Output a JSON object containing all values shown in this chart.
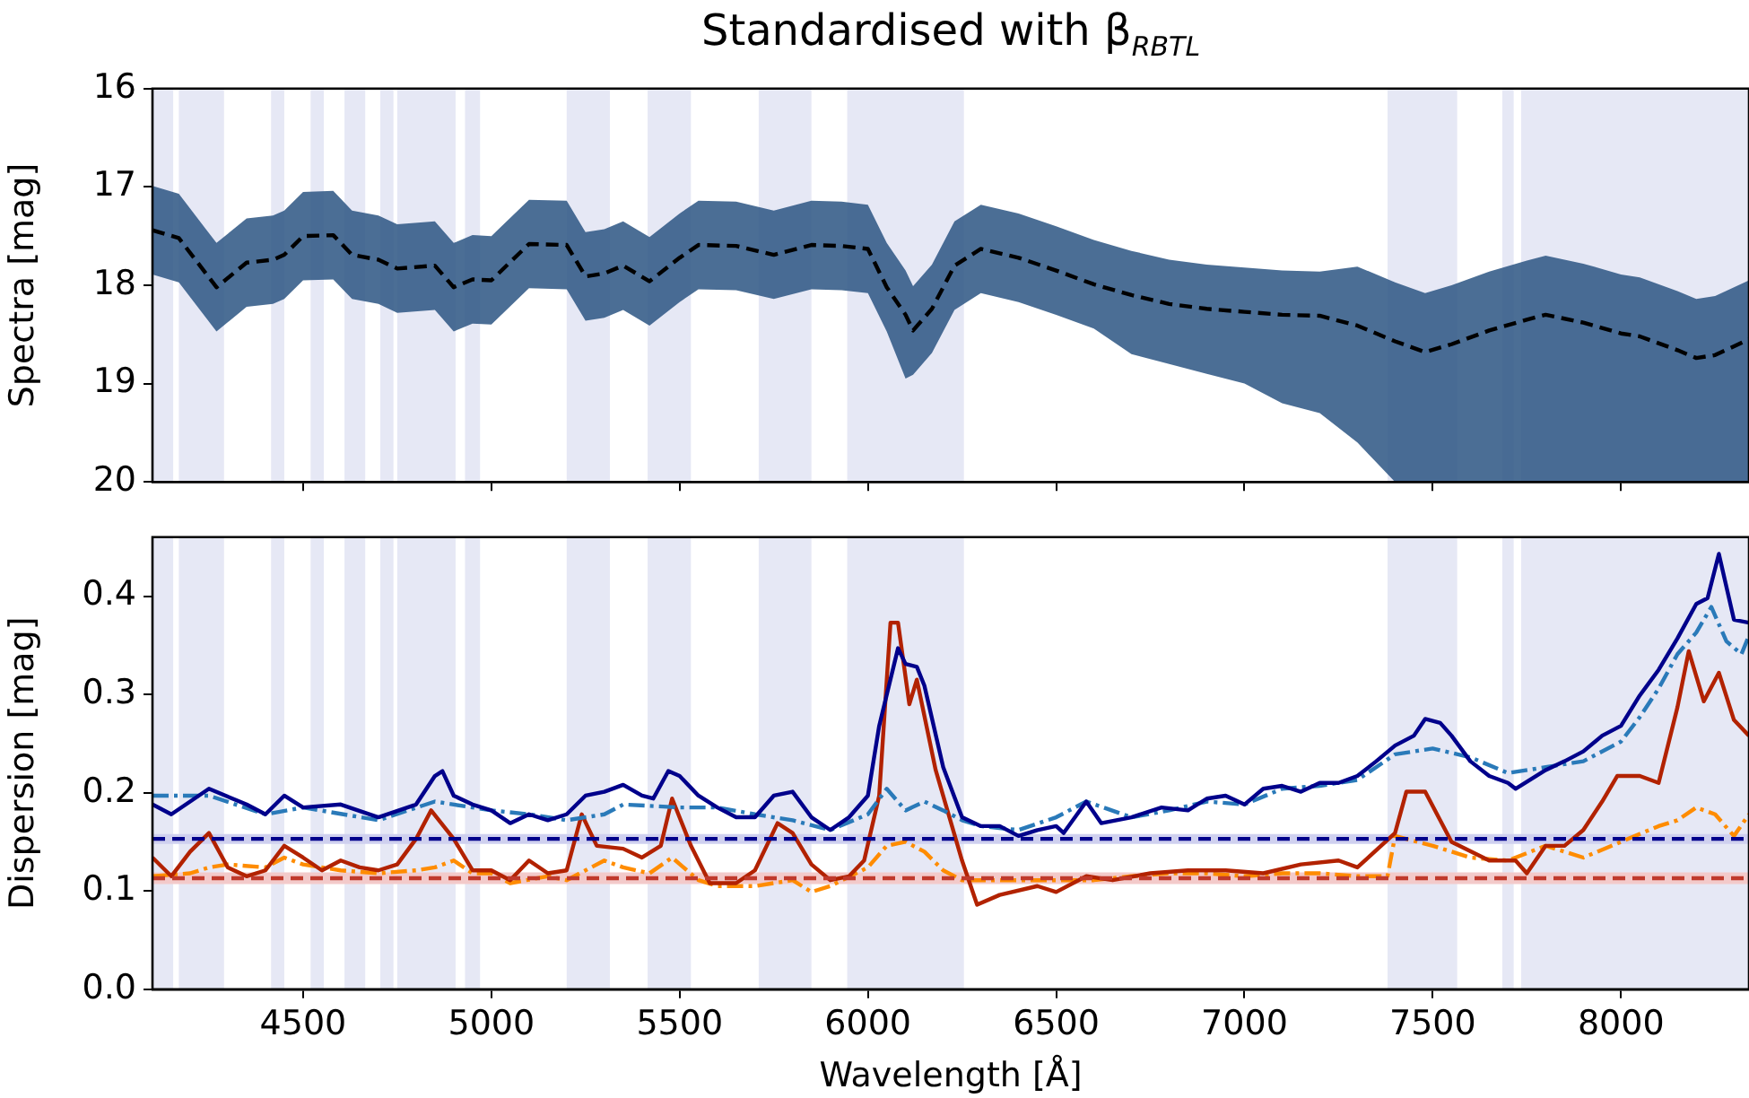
{
  "chart_data": [
    {
      "type": "line",
      "title": "Standardised with β$_{RBTL}$",
      "ylabel": "Spectra [mag]",
      "xlim": [
        4100,
        8340
      ],
      "ylim": [
        20,
        16
      ],
      "xticks": [
        4500,
        5000,
        5500,
        6000,
        6500,
        7000,
        7500,
        8000
      ],
      "yticks": [
        16,
        17,
        18,
        19,
        20
      ],
      "tick_labels": "y",
      "bands": [
        {
          "axis": "x",
          "from": 4100,
          "to": 4155,
          "color": "#e6e8f5"
        },
        {
          "axis": "x",
          "from": 4170,
          "to": 4290,
          "color": "#e6e8f5"
        },
        {
          "axis": "x",
          "from": 4415,
          "to": 4450,
          "color": "#e6e8f5"
        },
        {
          "axis": "x",
          "from": 4520,
          "to": 4555,
          "color": "#e6e8f5"
        },
        {
          "axis": "x",
          "from": 4610,
          "to": 4665,
          "color": "#e6e8f5"
        },
        {
          "axis": "x",
          "from": 4705,
          "to": 4740,
          "color": "#e6e8f5"
        },
        {
          "axis": "x",
          "from": 4750,
          "to": 4905,
          "color": "#e6e8f5"
        },
        {
          "axis": "x",
          "from": 4930,
          "to": 4970,
          "color": "#e6e8f5"
        },
        {
          "axis": "x",
          "from": 5200,
          "to": 5315,
          "color": "#e6e8f5"
        },
        {
          "axis": "x",
          "from": 5415,
          "to": 5530,
          "color": "#e6e8f5"
        },
        {
          "axis": "x",
          "from": 5710,
          "to": 5850,
          "color": "#e6e8f5"
        },
        {
          "axis": "x",
          "from": 5945,
          "to": 6255,
          "color": "#e6e8f5"
        },
        {
          "axis": "x",
          "from": 7380,
          "to": 7565,
          "color": "#e6e8f5"
        },
        {
          "axis": "x",
          "from": 7685,
          "to": 7715,
          "color": "#e6e8f5"
        },
        {
          "axis": "x",
          "from": 7735,
          "to": 8340,
          "color": "#e6e8f5"
        }
      ],
      "series": [
        {
          "color": "#000000",
          "line_style": "dashed",
          "x": [
            4100,
            4170,
            4270,
            4350,
            4420,
            4450,
            4500,
            4580,
            4630,
            4700,
            4750,
            4850,
            4900,
            4950,
            5000,
            5100,
            5200,
            5250,
            5300,
            5350,
            5420,
            5500,
            5550,
            5650,
            5750,
            5850,
            5930,
            6000,
            6050,
            6100,
            6120,
            6170,
            6230,
            6300,
            6400,
            6500,
            6600,
            6700,
            6800,
            6900,
            7000,
            7100,
            7200,
            7300,
            7400,
            7480,
            7550,
            7650,
            7750,
            7800,
            7900,
            8000,
            8050,
            8150,
            8200,
            8250,
            8340
          ],
          "values": [
            17.44,
            17.52,
            18.02,
            17.77,
            17.74,
            17.69,
            17.5,
            17.49,
            17.69,
            17.74,
            17.83,
            17.8,
            18.02,
            17.94,
            17.95,
            17.58,
            17.59,
            17.91,
            17.88,
            17.8,
            17.96,
            17.72,
            17.59,
            17.6,
            17.69,
            17.59,
            17.6,
            17.63,
            18.02,
            18.3,
            18.46,
            18.24,
            17.8,
            17.63,
            17.72,
            17.85,
            17.99,
            18.1,
            18.19,
            18.24,
            18.27,
            18.3,
            18.31,
            18.41,
            18.57,
            18.68,
            18.6,
            18.46,
            18.35,
            18.3,
            18.38,
            18.49,
            18.52,
            18.66,
            18.74,
            18.71,
            18.55
          ],
          "upper": [
            16.99,
            17.07,
            17.57,
            17.32,
            17.29,
            17.24,
            17.05,
            17.04,
            17.24,
            17.29,
            17.38,
            17.35,
            17.57,
            17.49,
            17.5,
            17.13,
            17.14,
            17.46,
            17.43,
            17.35,
            17.51,
            17.27,
            17.14,
            17.15,
            17.24,
            17.14,
            17.15,
            17.18,
            17.57,
            17.85,
            18.01,
            17.79,
            17.35,
            17.18,
            17.27,
            17.4,
            17.54,
            17.65,
            17.74,
            17.79,
            17.82,
            17.85,
            17.86,
            17.81,
            17.97,
            18.08,
            18.0,
            17.86,
            17.75,
            17.7,
            17.78,
            17.89,
            17.92,
            18.06,
            18.14,
            18.11,
            17.95
          ],
          "lower": [
            17.89,
            17.97,
            18.47,
            18.22,
            18.19,
            18.14,
            17.95,
            17.94,
            18.14,
            18.19,
            18.28,
            18.25,
            18.47,
            18.39,
            18.4,
            18.03,
            18.04,
            18.36,
            18.33,
            18.25,
            18.41,
            18.17,
            18.04,
            18.05,
            18.14,
            18.04,
            18.05,
            18.08,
            18.47,
            18.95,
            18.91,
            18.69,
            18.25,
            18.08,
            18.17,
            18.3,
            18.44,
            18.7,
            18.8,
            18.9,
            19.0,
            19.2,
            19.3,
            19.6,
            20,
            20,
            20,
            20,
            20,
            20,
            20,
            20,
            20,
            20,
            20,
            20,
            20
          ]
        }
      ]
    },
    {
      "type": "line",
      "xlabel": "Wavelength [Å]",
      "ylabel": "Dispersion [mag]",
      "xlim": [
        4100,
        8340
      ],
      "ylim": [
        0,
        0.46
      ],
      "xticks": [
        4500,
        5000,
        5500,
        6000,
        6500,
        7000,
        7500,
        8000
      ],
      "yticks": [
        {
          "value": 0,
          "label": "0.0"
        },
        {
          "value": 0.1,
          "label": "0.1"
        },
        {
          "value": 0.2,
          "label": "0.2"
        },
        {
          "value": 0.3,
          "label": "0.3"
        },
        {
          "value": 0.4,
          "label": "0.4"
        }
      ],
      "bands": [
        {
          "axis": "x",
          "from": 4100,
          "to": 4155,
          "color": "#e6e8f5"
        },
        {
          "axis": "x",
          "from": 4170,
          "to": 4290,
          "color": "#e6e8f5"
        },
        {
          "axis": "x",
          "from": 4415,
          "to": 4450,
          "color": "#e6e8f5"
        },
        {
          "axis": "x",
          "from": 4520,
          "to": 4555,
          "color": "#e6e8f5"
        },
        {
          "axis": "x",
          "from": 4610,
          "to": 4665,
          "color": "#e6e8f5"
        },
        {
          "axis": "x",
          "from": 4705,
          "to": 4740,
          "color": "#e6e8f5"
        },
        {
          "axis": "x",
          "from": 4750,
          "to": 4905,
          "color": "#e6e8f5"
        },
        {
          "axis": "x",
          "from": 4930,
          "to": 4970,
          "color": "#e6e8f5"
        },
        {
          "axis": "x",
          "from": 5200,
          "to": 5315,
          "color": "#e6e8f5"
        },
        {
          "axis": "x",
          "from": 5415,
          "to": 5530,
          "color": "#e6e8f5"
        },
        {
          "axis": "x",
          "from": 5710,
          "to": 5850,
          "color": "#e6e8f5"
        },
        {
          "axis": "x",
          "from": 5945,
          "to": 6255,
          "color": "#e6e8f5"
        },
        {
          "axis": "x",
          "from": 7380,
          "to": 7565,
          "color": "#e6e8f5"
        },
        {
          "axis": "x",
          "from": 7685,
          "to": 7715,
          "color": "#e6e8f5"
        },
        {
          "axis": "x",
          "from": 7735,
          "to": 8340,
          "color": "#e6e8f5"
        },
        {
          "axis": "y",
          "from": 0.148,
          "to": 0.158,
          "color": "#cfd0ef"
        },
        {
          "axis": "y",
          "from": 0.107,
          "to": 0.119,
          "color": "#f3caca"
        }
      ],
      "ref_lines": [
        {
          "axis": "y",
          "value": 0.153,
          "color": "#00008b",
          "line_style": "dashed"
        },
        {
          "axis": "y",
          "value": 0.113,
          "color": "#c0392b",
          "line_style": "dashed"
        }
      ],
      "series": [
        {
          "color": "#00008b",
          "line_style": "solid",
          "x": [
            4100,
            4150,
            4250,
            4350,
            4400,
            4450,
            4500,
            4600,
            4700,
            4800,
            4850,
            4870,
            4900,
            4950,
            5000,
            5050,
            5100,
            5150,
            5200,
            5250,
            5300,
            5350,
            5400,
            5430,
            5470,
            5500,
            5550,
            5600,
            5650,
            5700,
            5750,
            5800,
            5850,
            5900,
            5950,
            6000,
            6030,
            6080,
            6100,
            6130,
            6150,
            6200,
            6250,
            6300,
            6350,
            6400,
            6450,
            6500,
            6520,
            6580,
            6620,
            6700,
            6780,
            6850,
            6900,
            6950,
            7000,
            7050,
            7100,
            7150,
            7200,
            7250,
            7300,
            7350,
            7400,
            7450,
            7480,
            7520,
            7550,
            7600,
            7650,
            7700,
            7720,
            7800,
            7850,
            7900,
            7950,
            8000,
            8050,
            8100,
            8150,
            8200,
            8230,
            8260,
            8300,
            8340
          ],
          "values": [
            0.188,
            0.178,
            0.204,
            0.188,
            0.178,
            0.197,
            0.185,
            0.188,
            0.175,
            0.188,
            0.217,
            0.222,
            0.197,
            0.188,
            0.182,
            0.169,
            0.178,
            0.172,
            0.178,
            0.197,
            0.201,
            0.208,
            0.197,
            0.194,
            0.222,
            0.217,
            0.197,
            0.185,
            0.175,
            0.175,
            0.197,
            0.201,
            0.175,
            0.162,
            0.175,
            0.197,
            0.268,
            0.347,
            0.331,
            0.328,
            0.309,
            0.226,
            0.175,
            0.166,
            0.166,
            0.156,
            0.162,
            0.166,
            0.159,
            0.191,
            0.169,
            0.175,
            0.185,
            0.182,
            0.194,
            0.197,
            0.188,
            0.204,
            0.207,
            0.201,
            0.21,
            0.21,
            0.217,
            0.232,
            0.248,
            0.258,
            0.275,
            0.271,
            0.258,
            0.232,
            0.217,
            0.21,
            0.204,
            0.223,
            0.232,
            0.242,
            0.258,
            0.268,
            0.299,
            0.325,
            0.357,
            0.392,
            0.398,
            0.443,
            0.376,
            0.373
          ]
        },
        {
          "color": "#2a7ab9",
          "line_style": "dashdot",
          "x": [
            4100,
            4250,
            4400,
            4500,
            4700,
            4850,
            4950,
            5000,
            5100,
            5200,
            5300,
            5350,
            5500,
            5600,
            5700,
            5800,
            5900,
            6000,
            6050,
            6100,
            6150,
            6200,
            6250,
            6300,
            6400,
            6500,
            6580,
            6700,
            6800,
            6900,
            7000,
            7100,
            7200,
            7300,
            7400,
            7450,
            7500,
            7600,
            7700,
            7800,
            7900,
            8000,
            8050,
            8100,
            8150,
            8200,
            8240,
            8280,
            8320,
            8340
          ],
          "values": [
            0.197,
            0.197,
            0.178,
            0.185,
            0.172,
            0.191,
            0.185,
            0.182,
            0.178,
            0.172,
            0.178,
            0.188,
            0.185,
            0.185,
            0.178,
            0.172,
            0.162,
            0.178,
            0.204,
            0.182,
            0.191,
            0.182,
            0.172,
            0.166,
            0.162,
            0.175,
            0.191,
            0.175,
            0.182,
            0.191,
            0.188,
            0.204,
            0.207,
            0.213,
            0.239,
            0.242,
            0.245,
            0.236,
            0.22,
            0.226,
            0.232,
            0.252,
            0.277,
            0.306,
            0.341,
            0.363,
            0.389,
            0.354,
            0.341,
            0.36
          ]
        },
        {
          "color": "#b22200",
          "line_style": "solid",
          "x": [
            4100,
            4150,
            4200,
            4250,
            4300,
            4350,
            4400,
            4450,
            4500,
            4550,
            4600,
            4650,
            4700,
            4750,
            4800,
            4840,
            4900,
            4950,
            5000,
            5050,
            5100,
            5150,
            5200,
            5240,
            5280,
            5350,
            5400,
            5450,
            5480,
            5530,
            5580,
            5650,
            5700,
            5760,
            5800,
            5850,
            5900,
            5950,
            5990,
            6030,
            6060,
            6080,
            6110,
            6130,
            6180,
            6250,
            6290,
            6350,
            6450,
            6500,
            6580,
            6650,
            6750,
            6850,
            6950,
            7050,
            7150,
            7250,
            7300,
            7400,
            7430,
            7480,
            7550,
            7650,
            7720,
            7750,
            7800,
            7850,
            7900,
            7950,
            7990,
            8050,
            8100,
            8150,
            8180,
            8220,
            8260,
            8300,
            8340
          ],
          "values": [
            0.134,
            0.115,
            0.14,
            0.159,
            0.124,
            0.115,
            0.121,
            0.146,
            0.134,
            0.121,
            0.131,
            0.124,
            0.121,
            0.127,
            0.153,
            0.182,
            0.153,
            0.121,
            0.121,
            0.111,
            0.131,
            0.118,
            0.121,
            0.178,
            0.146,
            0.143,
            0.134,
            0.146,
            0.194,
            0.146,
            0.108,
            0.108,
            0.121,
            0.169,
            0.159,
            0.127,
            0.111,
            0.115,
            0.131,
            0.197,
            0.373,
            0.373,
            0.29,
            0.315,
            0.223,
            0.131,
            0.086,
            0.096,
            0.105,
            0.099,
            0.115,
            0.111,
            0.118,
            0.121,
            0.121,
            0.118,
            0.127,
            0.131,
            0.124,
            0.159,
            0.201,
            0.201,
            0.15,
            0.131,
            0.131,
            0.118,
            0.146,
            0.146,
            0.162,
            0.191,
            0.217,
            0.217,
            0.21,
            0.287,
            0.344,
            0.293,
            0.322,
            0.274,
            0.258
          ]
        },
        {
          "color": "#ff8c00",
          "line_style": "dashdot",
          "x": [
            4100,
            4200,
            4250,
            4300,
            4400,
            4450,
            4500,
            4600,
            4700,
            4800,
            4850,
            4900,
            4950,
            5000,
            5050,
            5150,
            5200,
            5300,
            5350,
            5420,
            5480,
            5550,
            5600,
            5700,
            5800,
            5850,
            5900,
            6000,
            6050,
            6100,
            6150,
            6200,
            6250,
            6400,
            6500,
            6600,
            6700,
            6800,
            6900,
            7000,
            7100,
            7200,
            7300,
            7380,
            7400,
            7500,
            7600,
            7700,
            7800,
            7900,
            8000,
            8100,
            8150,
            8200,
            8250,
            8300,
            8340
          ],
          "values": [
            0.115,
            0.118,
            0.124,
            0.127,
            0.124,
            0.134,
            0.127,
            0.121,
            0.118,
            0.121,
            0.124,
            0.131,
            0.118,
            0.118,
            0.108,
            0.115,
            0.111,
            0.131,
            0.124,
            0.118,
            0.134,
            0.111,
            0.105,
            0.105,
            0.111,
            0.099,
            0.105,
            0.124,
            0.146,
            0.15,
            0.14,
            0.121,
            0.111,
            0.111,
            0.111,
            0.111,
            0.115,
            0.118,
            0.118,
            0.115,
            0.118,
            0.118,
            0.115,
            0.115,
            0.156,
            0.146,
            0.134,
            0.131,
            0.146,
            0.134,
            0.15,
            0.166,
            0.172,
            0.185,
            0.178,
            0.156,
            0.178
          ]
        }
      ]
    }
  ]
}
